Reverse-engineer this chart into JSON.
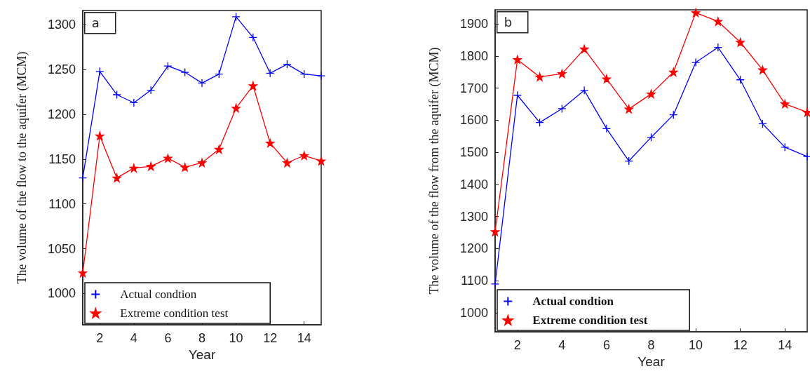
{
  "chart_data": [
    {
      "type": "line",
      "annotations": [
        "a"
      ],
      "xlabel": "Year",
      "ylabel": "The volume of the flow to the aquifer (MCM)",
      "x": [
        1,
        2,
        3,
        4,
        5,
        6,
        7,
        8,
        9,
        10,
        11,
        12,
        13,
        14,
        15
      ],
      "xlim": [
        1,
        15
      ],
      "xticks": [
        2,
        4,
        6,
        8,
        10,
        12,
        14
      ],
      "ylim": [
        965,
        1316
      ],
      "yticks": [
        1000,
        1050,
        1100,
        1150,
        1200,
        1250,
        1300
      ],
      "grid": false,
      "legend": "bottom left",
      "series": [
        {
          "name": "Actual condtion",
          "color": "#0000ff",
          "marker": "cross",
          "values": [
            1129,
            1248,
            1222,
            1213,
            1227,
            1254,
            1247,
            1235,
            1245,
            1309,
            1286,
            1246,
            1256,
            1245,
            1243
          ]
        },
        {
          "name": "Extreme condition test",
          "color": "#ff0000",
          "marker": "star",
          "values": [
            1023,
            1176,
            1129,
            1140,
            1142,
            1151,
            1141,
            1146,
            1161,
            1207,
            1232,
            1168,
            1146,
            1154,
            1148
          ]
        }
      ]
    },
    {
      "type": "line",
      "annotations": [
        "b"
      ],
      "xlabel": "Year",
      "ylabel": "The volume of the flow from the aquifer (MCM)",
      "x": [
        1,
        2,
        3,
        4,
        5,
        6,
        7,
        8,
        9,
        10,
        11,
        12,
        13,
        14,
        15
      ],
      "xlim": [
        1,
        15
      ],
      "xticks": [
        2,
        4,
        6,
        8,
        10,
        12,
        14
      ],
      "ylim": [
        941,
        1944
      ],
      "yticks": [
        1000,
        1100,
        1200,
        1300,
        1400,
        1500,
        1600,
        1700,
        1800,
        1900
      ],
      "grid": false,
      "legend": "bottom left",
      "series": [
        {
          "name": "Actual condtion",
          "color": "#0000ff",
          "marker": "cross",
          "values": [
            1090,
            1678,
            1593,
            1636,
            1693,
            1574,
            1473,
            1547,
            1617,
            1780,
            1827,
            1726,
            1589,
            1516,
            1487
          ]
        },
        {
          "name": "Extreme condition test",
          "color": "#ff0000",
          "marker": "star",
          "values": [
            1253,
            1789,
            1735,
            1745,
            1822,
            1729,
            1635,
            1682,
            1750,
            1935,
            1908,
            1843,
            1757,
            1651,
            1625
          ]
        }
      ]
    }
  ]
}
